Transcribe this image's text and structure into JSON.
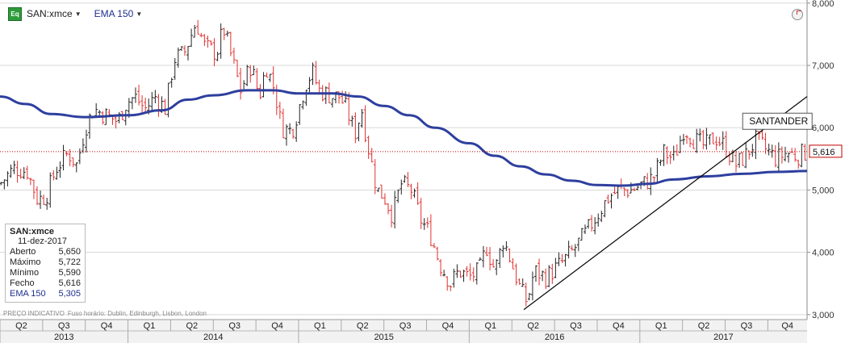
{
  "toolbar": {
    "symbol_badge": "Eq",
    "symbol": "SAN:xmce",
    "indicator": "EMA 150"
  },
  "legend": {
    "title": "SAN:xmce",
    "date": "11-dez-2017",
    "rows": [
      {
        "label": "Aberto",
        "value": "5,650"
      },
      {
        "label": "Máximo",
        "value": "5,722"
      },
      {
        "label": "Mínimo",
        "value": "5,590"
      },
      {
        "label": "Fecho",
        "value": "5,616"
      }
    ],
    "ema_label": "EMA 150",
    "ema_value": "5,305"
  },
  "footnote": {
    "price_type": "PREÇO INDICATIVO",
    "timezone": "Fuso horário: Dublin, Edinburgh, Lisbon, London"
  },
  "colors": {
    "up_bar": "#222222",
    "down_bar": "#e03030",
    "ema_line": "#2e3f9e",
    "trendline": "#000000",
    "last_price_line": "#c00000"
  },
  "chart_data": {
    "type": "ohlc",
    "annotation": "SANTANDER",
    "last_price": 5.616,
    "last_price_label": "5,616",
    "ylim": [
      2.92,
      8.05
    ],
    "y_ticks": [
      {
        "value": 3,
        "label": "3,000"
      },
      {
        "value": 4,
        "label": "4,000"
      },
      {
        "value": 5,
        "label": "5,000"
      },
      {
        "value": 6,
        "label": "6,000"
      },
      {
        "value": 7,
        "label": "7,000"
      },
      {
        "value": 8,
        "label": "8,000"
      }
    ],
    "x_start": 2013.25,
    "x_end": 2017.98,
    "quarters": [
      {
        "label": "Q2",
        "start": 2013.25,
        "end": 2013.5
      },
      {
        "label": "Q3",
        "start": 2013.5,
        "end": 2013.75
      },
      {
        "label": "Q4",
        "start": 2013.75,
        "end": 2014.0
      },
      {
        "label": "Q1",
        "start": 2014.0,
        "end": 2014.25
      },
      {
        "label": "Q2",
        "start": 2014.25,
        "end": 2014.5
      },
      {
        "label": "Q3",
        "start": 2014.5,
        "end": 2014.75
      },
      {
        "label": "Q4",
        "start": 2014.75,
        "end": 2015.0
      },
      {
        "label": "Q1",
        "start": 2015.0,
        "end": 2015.25
      },
      {
        "label": "Q2",
        "start": 2015.25,
        "end": 2015.5
      },
      {
        "label": "Q3",
        "start": 2015.5,
        "end": 2015.75
      },
      {
        "label": "Q4",
        "start": 2015.75,
        "end": 2016.0
      },
      {
        "label": "Q1",
        "start": 2016.0,
        "end": 2016.25
      },
      {
        "label": "Q2",
        "start": 2016.25,
        "end": 2016.5
      },
      {
        "label": "Q3",
        "start": 2016.5,
        "end": 2016.75
      },
      {
        "label": "Q4",
        "start": 2016.75,
        "end": 2017.0
      },
      {
        "label": "Q1",
        "start": 2017.0,
        "end": 2017.25
      },
      {
        "label": "Q2",
        "start": 2017.25,
        "end": 2017.5
      },
      {
        "label": "Q3",
        "start": 2017.5,
        "end": 2017.75
      },
      {
        "label": "Q4",
        "start": 2017.75,
        "end": 2017.98
      }
    ],
    "years": [
      {
        "label": "2013",
        "start": 2013.25,
        "end": 2014.0
      },
      {
        "label": "2014",
        "start": 2014.0,
        "end": 2015.0
      },
      {
        "label": "2015",
        "start": 2015.0,
        "end": 2016.0
      },
      {
        "label": "2016",
        "start": 2016.0,
        "end": 2017.0
      },
      {
        "label": "2017",
        "start": 2017.0,
        "end": 2017.98
      }
    ],
    "close_path": [
      [
        2013.25,
        5.1
      ],
      [
        2013.33,
        5.35
      ],
      [
        2013.41,
        5.3
      ],
      [
        2013.47,
        4.85
      ],
      [
        2013.52,
        4.9
      ],
      [
        2013.58,
        5.35
      ],
      [
        2013.65,
        5.6
      ],
      [
        2013.7,
        5.4
      ],
      [
        2013.75,
        6.0
      ],
      [
        2013.8,
        6.3
      ],
      [
        2013.87,
        6.2
      ],
      [
        2013.94,
        6.1
      ],
      [
        2013.99,
        6.4
      ],
      [
        2014.04,
        6.5
      ],
      [
        2014.1,
        6.3
      ],
      [
        2014.16,
        6.5
      ],
      [
        2014.22,
        6.3
      ],
      [
        2014.27,
        7.1
      ],
      [
        2014.33,
        7.2
      ],
      [
        2014.4,
        7.7
      ],
      [
        2014.45,
        7.3
      ],
      [
        2014.52,
        7.2
      ],
      [
        2014.56,
        7.6
      ],
      [
        2014.62,
        7.0
      ],
      [
        2014.66,
        6.6
      ],
      [
        2014.72,
        7.0
      ],
      [
        2014.77,
        6.5
      ],
      [
        2014.81,
        7.0
      ],
      [
        2014.86,
        6.6
      ],
      [
        2014.9,
        6.0
      ],
      [
        2014.96,
        5.95
      ],
      [
        2015.0,
        6.3
      ],
      [
        2015.04,
        6.7
      ],
      [
        2015.08,
        6.9
      ],
      [
        2015.12,
        6.6
      ],
      [
        2015.2,
        6.5
      ],
      [
        2015.24,
        6.5
      ],
      [
        2015.28,
        6.3
      ],
      [
        2015.33,
        5.9
      ],
      [
        2015.37,
        6.3
      ],
      [
        2015.4,
        5.8
      ],
      [
        2015.46,
        5.0
      ],
      [
        2015.5,
        4.9
      ],
      [
        2015.55,
        4.6
      ],
      [
        2015.6,
        5.1
      ],
      [
        2015.66,
        5.0
      ],
      [
        2015.72,
        4.5
      ],
      [
        2015.77,
        4.3
      ],
      [
        2015.83,
        3.8
      ],
      [
        2015.89,
        3.5
      ],
      [
        2015.94,
        3.7
      ],
      [
        2016.0,
        3.6
      ],
      [
        2016.06,
        3.7
      ],
      [
        2016.1,
        4.1
      ],
      [
        2016.15,
        3.7
      ],
      [
        2016.2,
        4.2
      ],
      [
        2016.24,
        3.9
      ],
      [
        2016.3,
        3.4
      ],
      [
        2016.34,
        3.2
      ],
      [
        2016.38,
        3.7
      ],
      [
        2016.45,
        3.6
      ],
      [
        2016.53,
        3.8
      ],
      [
        2016.6,
        4.0
      ],
      [
        2016.68,
        4.3
      ],
      [
        2016.75,
        4.6
      ],
      [
        2016.82,
        4.9
      ],
      [
        2016.88,
        5.0
      ],
      [
        2016.95,
        5.0
      ],
      [
        2017.02,
        5.1
      ],
      [
        2017.08,
        5.2
      ],
      [
        2017.14,
        5.6
      ],
      [
        2017.2,
        5.5
      ],
      [
        2017.26,
        6.0
      ],
      [
        2017.32,
        5.8
      ],
      [
        2017.38,
        5.7
      ],
      [
        2017.44,
        5.85
      ],
      [
        2017.5,
        5.7
      ],
      [
        2017.56,
        5.4
      ],
      [
        2017.62,
        5.55
      ],
      [
        2017.68,
        5.8
      ],
      [
        2017.74,
        5.65
      ],
      [
        2017.8,
        5.5
      ],
      [
        2017.86,
        5.6
      ],
      [
        2017.92,
        5.55
      ],
      [
        2017.98,
        5.616
      ]
    ],
    "ema_path": [
      [
        2013.25,
        6.5
      ],
      [
        2013.4,
        6.38
      ],
      [
        2013.55,
        6.22
      ],
      [
        2013.75,
        6.17
      ],
      [
        2014.0,
        6.2
      ],
      [
        2014.2,
        6.28
      ],
      [
        2014.35,
        6.45
      ],
      [
        2014.5,
        6.52
      ],
      [
        2014.7,
        6.6
      ],
      [
        2014.85,
        6.6
      ],
      [
        2015.0,
        6.55
      ],
      [
        2015.2,
        6.55
      ],
      [
        2015.35,
        6.5
      ],
      [
        2015.5,
        6.35
      ],
      [
        2015.65,
        6.2
      ],
      [
        2015.8,
        6.0
      ],
      [
        2016.0,
        5.75
      ],
      [
        2016.15,
        5.55
      ],
      [
        2016.3,
        5.38
      ],
      [
        2016.45,
        5.25
      ],
      [
        2016.6,
        5.15
      ],
      [
        2016.75,
        5.08
      ],
      [
        2016.9,
        5.07
      ],
      [
        2017.05,
        5.1
      ],
      [
        2017.2,
        5.17
      ],
      [
        2017.4,
        5.22
      ],
      [
        2017.6,
        5.26
      ],
      [
        2017.8,
        5.29
      ],
      [
        2017.98,
        5.305
      ]
    ],
    "trendline": {
      "x1": 2016.32,
      "y1": 3.08,
      "x2": 2017.98,
      "y2": 6.5
    }
  }
}
